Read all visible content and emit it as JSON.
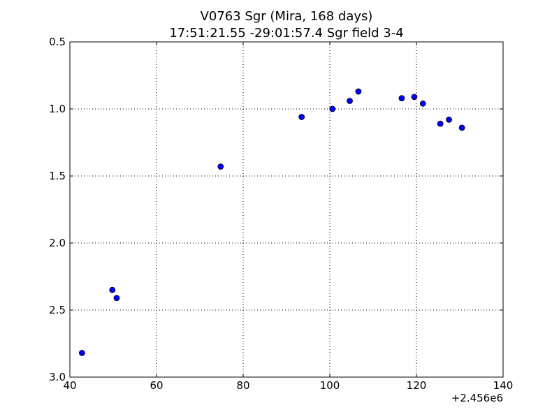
{
  "chart_data": {
    "type": "scatter",
    "title": "V0763 Sgr (Mira, 168 days)",
    "subtitle": "17:51:21.55 -29:01:57.4 Sgr field 3-4",
    "xlabel": "",
    "ylabel": "",
    "x_offset_label": "+2.456e6",
    "xlim": [
      40,
      140
    ],
    "ylim": [
      0.5,
      3.0
    ],
    "y_inverted": true,
    "grid": true,
    "x_ticks": [
      40,
      60,
      80,
      100,
      120,
      140
    ],
    "x_tick_labels": [
      "40",
      "60",
      "80",
      "100",
      "120",
      "140"
    ],
    "y_ticks": [
      0.5,
      1.0,
      1.5,
      2.0,
      2.5,
      3.0
    ],
    "y_tick_labels": [
      "0.5",
      "1.0",
      "1.5",
      "2.0",
      "2.5",
      "3.0"
    ],
    "marker_color": "#0000ff",
    "marker_edge_color": "#000000",
    "points": [
      {
        "x": 42.8,
        "y": 2.82
      },
      {
        "x": 49.8,
        "y": 2.35
      },
      {
        "x": 50.8,
        "y": 2.41
      },
      {
        "x": 74.8,
        "y": 1.43
      },
      {
        "x": 93.5,
        "y": 1.06
      },
      {
        "x": 100.6,
        "y": 1.0
      },
      {
        "x": 104.6,
        "y": 0.94
      },
      {
        "x": 106.6,
        "y": 0.87
      },
      {
        "x": 116.6,
        "y": 0.92
      },
      {
        "x": 119.5,
        "y": 0.91
      },
      {
        "x": 121.5,
        "y": 0.96
      },
      {
        "x": 125.5,
        "y": 1.11
      },
      {
        "x": 127.5,
        "y": 1.08
      },
      {
        "x": 130.5,
        "y": 1.14
      }
    ]
  }
}
